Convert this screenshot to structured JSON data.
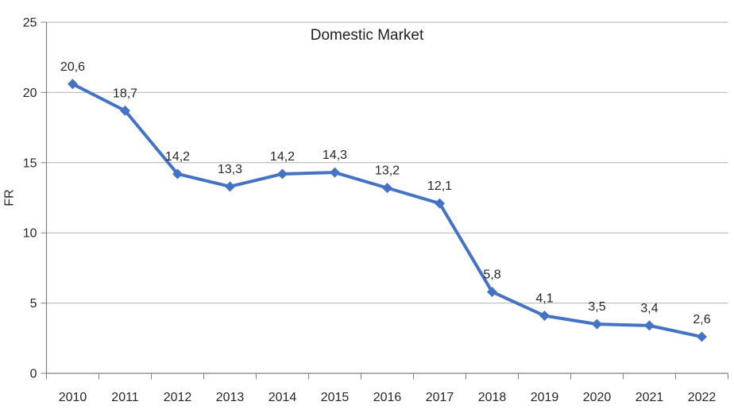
{
  "chart_data": {
    "type": "line",
    "title": "Domestic Market",
    "xlabel": "",
    "ylabel": "FR",
    "categories": [
      "2010",
      "2011",
      "2012",
      "2013",
      "2014",
      "2015",
      "2016",
      "2017",
      "2018",
      "2019",
      "2020",
      "2021",
      "2022"
    ],
    "series": [
      {
        "name": "Domestic Market",
        "values": [
          20.6,
          18.7,
          14.2,
          13.3,
          14.2,
          14.3,
          13.2,
          12.1,
          5.8,
          4.1,
          3.5,
          3.4,
          2.6
        ]
      }
    ],
    "data_labels": [
      "20,6",
      "18,7",
      "14,2",
      "13,3",
      "14,2",
      "14,3",
      "13,2",
      "12,1",
      "5,8",
      "4,1",
      "3,5",
      "3,4",
      "2,6"
    ],
    "ylim": [
      0,
      25
    ],
    "yticks": [
      0,
      5,
      10,
      15,
      20,
      25
    ],
    "ytick_labels": [
      "0",
      "5",
      "10",
      "15",
      "20",
      "25"
    ],
    "grid": true,
    "legend": "none",
    "marker": "diamond",
    "decimal_separator": ","
  },
  "chart_style": {
    "line_color": "#4472C4",
    "marker_color": "#4472C4",
    "gridline_color": "#B2B2B2",
    "axis_color": "#808080",
    "tick_color": "#808080",
    "tick_label_color": "#262626",
    "data_label_color": "#262626",
    "title_color": "#1f1f1f",
    "background_color": "#FFFFFF"
  }
}
